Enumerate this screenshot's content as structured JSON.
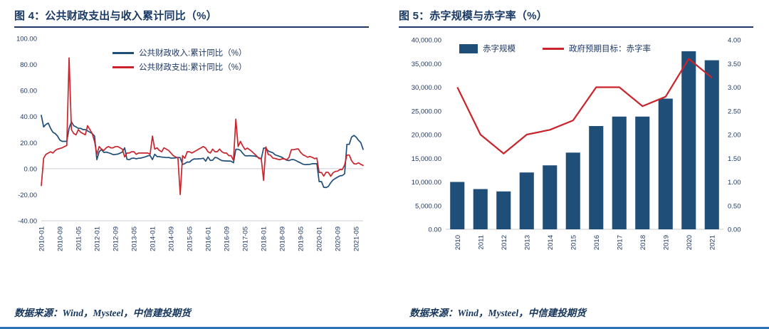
{
  "colors": {
    "navy_text": "#1A3A66",
    "axis_text": "#1F3864",
    "grid": "#C9CED6",
    "revenue_line": "#1F4E79",
    "expenditure_line": "#C9242B",
    "bar": "#1F4E79",
    "target_line": "#C9242B",
    "title_rule": "#1F3864",
    "footer_line": "#2E74B5"
  },
  "left_panel": {
    "title": "图 4：公共财政支出与收入累计同比（%）",
    "caption": "数据来源：Wind，Mysteel，中信建投期货"
  },
  "right_panel": {
    "title": "图 5：赤字规模与赤字率（%）",
    "caption": "数据来源：Wind，Mysteel，中信建投期货"
  },
  "chart_data": [
    {
      "type": "line",
      "title": "公共财政支出与收入累计同比（%）",
      "x_start": "2010-01",
      "x_freq": "monthly",
      "n_points": 140,
      "x_tick_every": 8,
      "x_tick_labels": [
        "2010-01",
        "2010-09",
        "2011-05",
        "2012-01",
        "2012-09",
        "2013-05",
        "2014-01",
        "2014-09",
        "2015-05",
        "2016-01",
        "2016-09",
        "2017-05",
        "2018-01",
        "2018-09",
        "2019-05",
        "2020-01",
        "2020-09",
        "2021-05"
      ],
      "ylim": [
        -40,
        100
      ],
      "y_ticks": [
        100,
        80,
        60,
        40,
        20,
        0,
        -20,
        -40
      ],
      "grid": false,
      "zero_line": true,
      "legend_position": "top",
      "series": [
        {
          "name": "公共财政收入:累计同比（%）",
          "color": "#1F4E79",
          "values": [
            41,
            32,
            34,
            35,
            31,
            28,
            27,
            25,
            22,
            21,
            21,
            21,
            31,
            36,
            33,
            32,
            31,
            31,
            30,
            30,
            29,
            28,
            27,
            25,
            7,
            13,
            14.7,
            12.5,
            12.7,
            12.2,
            11.6,
            10.8,
            10.9,
            11.2,
            11.9,
            12.8,
            16,
            7.2,
            6.9,
            7.9,
            8.1,
            7.5,
            8,
            8.1,
            8.6,
            9.1,
            9.9,
            10.1,
            7,
            11.1,
            9.3,
            9.3,
            8.9,
            8.8,
            8.5,
            8.6,
            8.1,
            8.2,
            8.3,
            8.6,
            8.5,
            3.2,
            3.9,
            5.1,
            5,
            6.6,
            7.5,
            7.4,
            7.6,
            7.7,
            8,
            5.8,
            9,
            6.3,
            6.5,
            8.6,
            8.3,
            7.1,
            6.2,
            6,
            5.9,
            5.9,
            5.7,
            4.5,
            14.9,
            14.9,
            14.1,
            11.8,
            10,
            9.8,
            10,
            9.8,
            9.7,
            9.2,
            8.4,
            7.4,
            15.8,
            15.8,
            13.6,
            12.9,
            12.2,
            10.6,
            10,
            9.4,
            8.7,
            7.4,
            6.5,
            6.2,
            7,
            7,
            6.2,
            5.3,
            4.4,
            3.4,
            3.1,
            3.2,
            3.3,
            3.8,
            3.8,
            3.8,
            -9.9,
            -9.9,
            -14.3,
            -14.5,
            -13.6,
            -10.8,
            -8.7,
            -7.5,
            -6.4,
            -5.5,
            -5.3,
            -3.9,
            18.7,
            18.7,
            24.2,
            25.5,
            24.2,
            21.8,
            20,
            14.8
          ]
        },
        {
          "name": "公共财政支出:累计同比（%）",
          "color": "#C9242B",
          "values": [
            -13,
            8,
            11,
            12,
            13,
            12,
            14,
            15,
            15.5,
            16,
            17,
            17.8,
            85,
            30,
            27,
            26,
            30,
            28,
            27,
            26,
            33,
            30,
            27,
            21,
            11,
            17,
            15,
            14,
            16,
            17,
            16,
            16,
            17,
            17,
            16,
            15,
            9,
            12,
            12,
            13,
            13,
            11,
            12,
            12,
            12,
            12,
            12,
            11,
            25,
            15,
            16,
            14,
            13,
            16,
            15,
            14,
            12,
            10,
            9,
            8.2,
            -19.9,
            10,
            8,
            13,
            13,
            12,
            13,
            14,
            15,
            16,
            17,
            15.8,
            13,
            12,
            15,
            13,
            13,
            15,
            13,
            12,
            12,
            10,
            10,
            6.4,
            38,
            17,
            21,
            17.5,
            14.7,
            15.8,
            14.5,
            13.1,
            11.4,
            9.8,
            7.8,
            7.7,
            -9,
            16.7,
            10.9,
            10.3,
            8.1,
            7.8,
            7.3,
            6.9,
            7.5,
            7.6,
            6.8,
            8.7,
            14.6,
            14.6,
            15,
            15.2,
            12.5,
            10.7,
            9.9,
            8.8,
            9.4,
            8.7,
            7.7,
            8.1,
            -2.9,
            -2.9,
            -5.7,
            -2.7,
            -2.9,
            -5.8,
            -3.2,
            -2.1,
            -1.9,
            -0.6,
            -0.7,
            2.8,
            10.5,
            10.5,
            6.2,
            3.8,
            3.6,
            4.5,
            3.3,
            2.5
          ]
        }
      ]
    },
    {
      "type": "bar+line",
      "title": "赤字规模与赤字率（%）",
      "categories": [
        "2010",
        "2011",
        "2012",
        "2013",
        "2014",
        "2015",
        "2016",
        "2017",
        "2018",
        "2019",
        "2020",
        "2021"
      ],
      "bar_series": {
        "name": "赤字规模",
        "color": "#1F4E79",
        "axis": "left",
        "values": [
          10000,
          8500,
          8000,
          12000,
          13500,
          16200,
          21800,
          23800,
          23800,
          27600,
          37600,
          35700
        ]
      },
      "line_series": {
        "name": "政府预期目标：赤字率",
        "color": "#C9242B",
        "axis": "right",
        "values": [
          3.0,
          2.0,
          1.6,
          2.0,
          2.1,
          2.3,
          3.0,
          3.0,
          2.6,
          2.8,
          3.6,
          3.2
        ]
      },
      "left_ylim": [
        0,
        40000
      ],
      "left_tick_step": 5000,
      "right_ylim": [
        0,
        4
      ],
      "right_tick_step": 0.5,
      "grid": false,
      "legend_position": "top"
    }
  ]
}
